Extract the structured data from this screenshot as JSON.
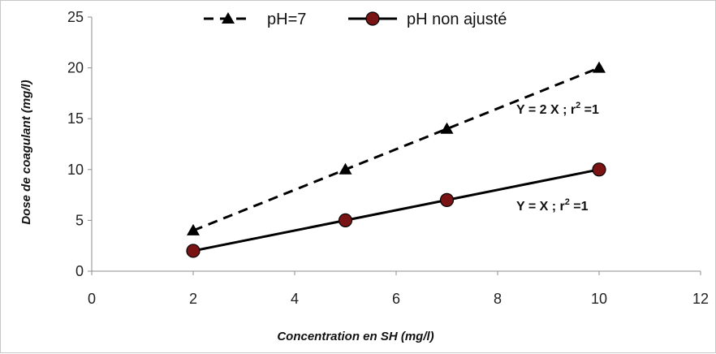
{
  "chart_data": {
    "type": "line",
    "title": "",
    "xlabel": "Concentration en SH (mg/l)",
    "ylabel": "Dose de coagulant (mg/l)",
    "xlim": [
      0,
      12
    ],
    "ylim": [
      0,
      25
    ],
    "xticks": [
      0,
      2,
      4,
      6,
      8,
      10,
      12
    ],
    "yticks": [
      0,
      5,
      10,
      15,
      20,
      25
    ],
    "grid": false,
    "legend_position": "top",
    "series": [
      {
        "name": "pH=7",
        "marker": "triangle",
        "line_style": "dashed",
        "color": "#000000",
        "x": [
          2,
          5,
          7,
          10
        ],
        "y": [
          4,
          10,
          14,
          20
        ]
      },
      {
        "name": "pH  non ajusté",
        "marker": "circle",
        "line_style": "solid",
        "color": "#000000",
        "marker_fill": "#7a1414",
        "x": [
          2,
          5,
          7,
          10
        ],
        "y": [
          2,
          5,
          7,
          10
        ]
      }
    ],
    "annotations": [
      {
        "text_main": "Y = 2 X ; r",
        "sup": "2",
        "text_end": " =1",
        "at_x": 10.8,
        "at_y": 15.5
      },
      {
        "text_main": "Y  = X   ; r",
        "sup": "2",
        "text_end": " =1",
        "at_x": 10.8,
        "at_y": 6.0
      }
    ]
  }
}
